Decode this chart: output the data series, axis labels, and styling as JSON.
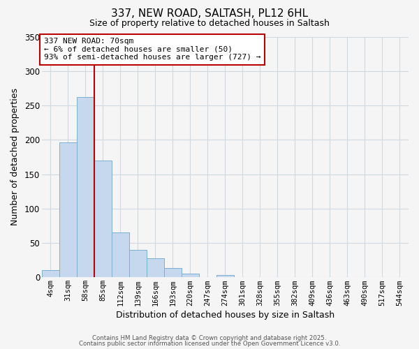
{
  "title": "337, NEW ROAD, SALTASH, PL12 6HL",
  "subtitle": "Size of property relative to detached houses in Saltash",
  "xlabel": "Distribution of detached houses by size in Saltash",
  "ylabel": "Number of detached properties",
  "categories": [
    "4sqm",
    "31sqm",
    "58sqm",
    "85sqm",
    "112sqm",
    "139sqm",
    "166sqm",
    "193sqm",
    "220sqm",
    "247sqm",
    "274sqm",
    "301sqm",
    "328sqm",
    "355sqm",
    "382sqm",
    "409sqm",
    "436sqm",
    "463sqm",
    "490sqm",
    "517sqm",
    "544sqm"
  ],
  "bar_values": [
    10,
    196,
    262,
    170,
    65,
    40,
    28,
    13,
    5,
    0,
    3,
    0,
    0,
    0,
    0,
    0,
    0,
    0,
    0,
    0,
    0
  ],
  "bar_color": "#c5d8ed",
  "bar_edgecolor": "#7bafd4",
  "ylim": [
    0,
    350
  ],
  "yticks": [
    0,
    50,
    100,
    150,
    200,
    250,
    300,
    350
  ],
  "vline_color": "#bb0000",
  "annotation_title": "337 NEW ROAD: 70sqm",
  "annotation_line1": "← 6% of detached houses are smaller (50)",
  "annotation_line2": "93% of semi-detached houses are larger (727) →",
  "annotation_box_color": "#ffffff",
  "annotation_box_edgecolor": "#bb0000",
  "footer1": "Contains HM Land Registry data © Crown copyright and database right 2025.",
  "footer2": "Contains public sector information licensed under the Open Government Licence v3.0.",
  "background_color": "#f5f5f5",
  "grid_color": "#d0d8e0"
}
